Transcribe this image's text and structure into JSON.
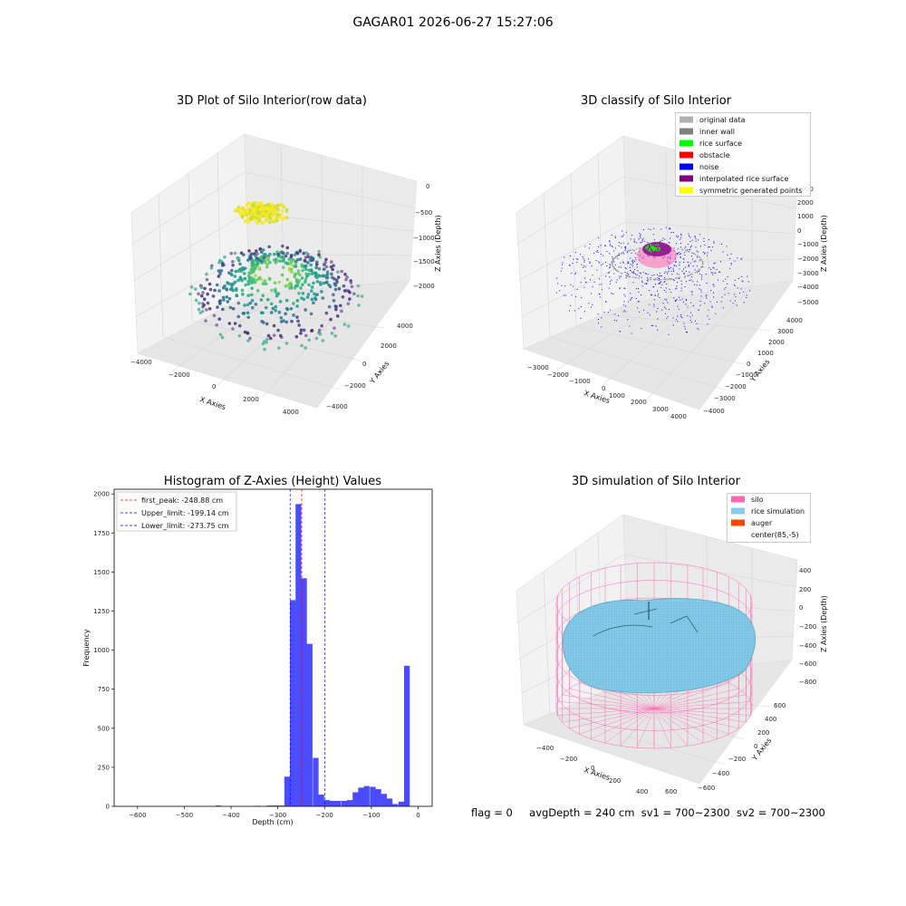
{
  "suptitle": "GAGAR01 2026-06-27 15:27:06",
  "panels": {
    "raw": {
      "title": "3D Plot of Silo Interior(row data)",
      "xlabel": "X Axies",
      "ylabel": "Y Axies",
      "zlabel": "Z Axies (Depth)",
      "x_ticks": [
        "−4000",
        "−2000",
        "0",
        "2000",
        "4000"
      ],
      "y_ticks": [
        "−4000",
        "−2000",
        "0",
        "2000",
        "4000"
      ],
      "z_ticks": [
        "0",
        "−500",
        "−1000",
        "−1500",
        "−2000"
      ]
    },
    "classify": {
      "title": "3D classify of Silo Interior",
      "xlabel": "X Axies",
      "ylabel": "Y Axies",
      "zlabel": "Z Axies (Depth)",
      "x_ticks": [
        "−3000",
        "−2000",
        "−1000",
        "0",
        "1000",
        "2000",
        "3000",
        "4000"
      ],
      "y_ticks": [
        "−4000",
        "−3000",
        "−2000",
        "−1000",
        "0",
        "1000",
        "2000",
        "3000",
        "4000"
      ],
      "z_ticks": [
        "3000",
        "2000",
        "1000",
        "0",
        "−1000",
        "−2000",
        "−3000",
        "−4000",
        "−5000"
      ],
      "legend": [
        {
          "label": "original data",
          "color": "#b0b0b0"
        },
        {
          "label": "inner wall",
          "color": "#808080"
        },
        {
          "label": "rice surface",
          "color": "#00ff00"
        },
        {
          "label": "obstacle",
          "color": "#ff0000"
        },
        {
          "label": "noise",
          "color": "#0000ff"
        },
        {
          "label": "interpolated rice surface",
          "color": "#800080"
        },
        {
          "label": "symmetric generated points",
          "color": "#ffff00"
        }
      ]
    },
    "simulation": {
      "title": "3D simulation of Silo Interior",
      "xlabel": "X Axies",
      "ylabel": "Y Axies",
      "zlabel": "Z Axies (Depth)",
      "x_ticks": [
        "−400",
        "−200",
        "0",
        "200",
        "400",
        "600"
      ],
      "y_ticks": [
        "−600",
        "−400",
        "−200",
        "0",
        "200",
        "400",
        "600"
      ],
      "z_ticks": [
        "400",
        "200",
        "0",
        "−200",
        "−400",
        "−600",
        "−800"
      ],
      "legend": [
        {
          "label": "silo",
          "color": "#ff69b4"
        },
        {
          "label": "rice simulation",
          "color": "#87ceeb"
        },
        {
          "label": "auger",
          "color": "#ff4500"
        },
        {
          "label": "center(85,-5)",
          "color": ""
        }
      ]
    }
  },
  "chart_data": [
    {
      "type": "bar",
      "title": "Histogram of Z-Axies (Height) Values",
      "xlabel": "Depth (cm)",
      "ylabel": "Frequency",
      "xlim": [
        -650,
        30
      ],
      "ylim": [
        0,
        2030
      ],
      "bar_color": "#0000ff",
      "x_ticks": [
        -600,
        -500,
        -400,
        -300,
        -200,
        -100,
        0
      ],
      "y_ticks": [
        0,
        250,
        500,
        750,
        1000,
        1250,
        1500,
        1750,
        2000
      ],
      "bin_width": 12.2,
      "bins": [
        {
          "x": -427,
          "value": 5
        },
        {
          "x": -342,
          "value": 3
        },
        {
          "x": -317,
          "value": 5
        },
        {
          "x": -305,
          "value": 5
        },
        {
          "x": -293,
          "value": 5
        },
        {
          "x": -280,
          "value": 190
        },
        {
          "x": -268,
          "value": 1320
        },
        {
          "x": -256,
          "value": 1935
        },
        {
          "x": -244,
          "value": 1460
        },
        {
          "x": -232,
          "value": 1040
        },
        {
          "x": -219,
          "value": 310
        },
        {
          "x": -207,
          "value": 75
        },
        {
          "x": -195,
          "value": 40
        },
        {
          "x": -183,
          "value": 35
        },
        {
          "x": -171,
          "value": 35
        },
        {
          "x": -158,
          "value": 35
        },
        {
          "x": -146,
          "value": 40
        },
        {
          "x": -134,
          "value": 90
        },
        {
          "x": -122,
          "value": 120
        },
        {
          "x": -110,
          "value": 130
        },
        {
          "x": -97,
          "value": 125
        },
        {
          "x": -85,
          "value": 110
        },
        {
          "x": -73,
          "value": 80
        },
        {
          "x": -61,
          "value": 50
        },
        {
          "x": -49,
          "value": 15
        },
        {
          "x": -36,
          "value": 30
        },
        {
          "x": -24,
          "value": 900
        }
      ],
      "lines": [
        {
          "label": "first_peak: -248.88 cm",
          "x": -248.88,
          "color": "#ff0000"
        },
        {
          "label": "Upper_limit: -199.14 cm",
          "x": -199.14,
          "color": "#0000ff"
        },
        {
          "label": "Lower_limit: -273.75 cm",
          "x": -273.75,
          "color": "#0000ff"
        }
      ]
    }
  ],
  "footer": {
    "flag": "flag = 0",
    "avg": "avgDepth = 240 cm",
    "sv1": "sv1 = 700~2300",
    "sv2": "sv2 = 700~2300"
  }
}
